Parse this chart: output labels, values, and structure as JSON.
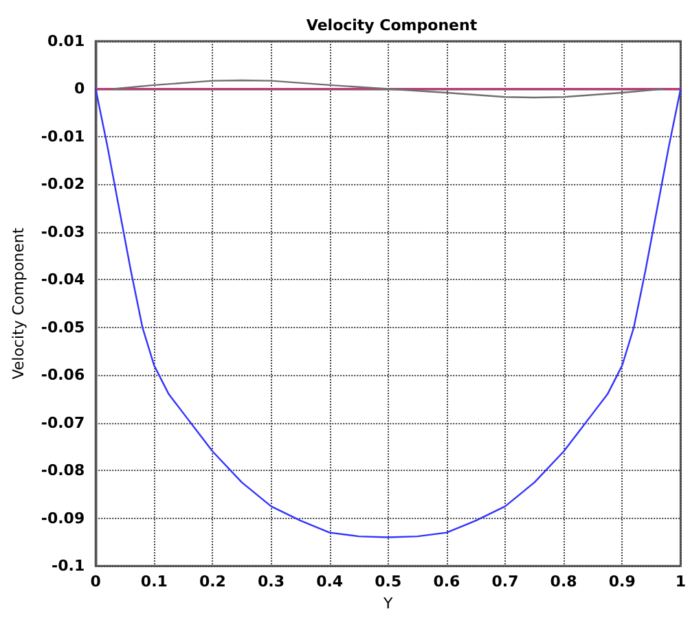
{
  "chart_data": {
    "type": "line",
    "title": "Velocity Component",
    "xlabel": "Y",
    "ylabel": "Velocity Component",
    "xlim": [
      0,
      1
    ],
    "xticks": [
      0,
      0.1,
      0.2,
      0.3,
      0.4,
      0.5,
      0.6,
      0.7,
      0.8,
      0.9,
      1
    ],
    "ylim": [
      -0.1,
      0.01
    ],
    "yticks": [
      0.01,
      0,
      -0.01,
      -0.02,
      -0.03,
      -0.04,
      -0.05,
      -0.06,
      -0.07,
      -0.08,
      -0.09,
      -0.1
    ],
    "grid": true,
    "marker": "none",
    "line_style": "solid",
    "series": [
      {
        "color": "#cc3377",
        "x": [
          0,
          1
        ],
        "values": [
          0,
          0
        ]
      },
      {
        "color": "#707070",
        "x": [
          0.03,
          0.1,
          0.2,
          0.25,
          0.3,
          0.4,
          0.5,
          0.6,
          0.7,
          0.75,
          0.8,
          0.9,
          0.97
        ],
        "values": [
          0,
          0.0008,
          0.0017,
          0.0018,
          0.0017,
          0.0008,
          0,
          -0.0008,
          -0.0017,
          -0.0018,
          -0.0017,
          -0.0008,
          0
        ]
      },
      {
        "color": "#3333ff",
        "x": [
          0,
          0.02,
          0.04,
          0.06,
          0.08,
          0.1,
          0.125,
          0.15,
          0.175,
          0.2,
          0.25,
          0.3,
          0.35,
          0.4,
          0.45,
          0.5,
          0.55,
          0.6,
          0.65,
          0.7,
          0.75,
          0.8,
          0.825,
          0.85,
          0.875,
          0.9,
          0.92,
          0.94,
          0.96,
          0.98,
          1
        ],
        "values": [
          0,
          -0.012,
          -0.025,
          -0.038,
          -0.05,
          -0.058,
          -0.064,
          -0.068,
          -0.072,
          -0.076,
          -0.0825,
          -0.0875,
          -0.0905,
          -0.093,
          -0.0938,
          -0.094,
          -0.0938,
          -0.093,
          -0.0905,
          -0.0875,
          -0.0825,
          -0.076,
          -0.072,
          -0.068,
          -0.064,
          -0.058,
          -0.05,
          -0.038,
          -0.025,
          -0.012,
          0
        ]
      }
    ]
  }
}
